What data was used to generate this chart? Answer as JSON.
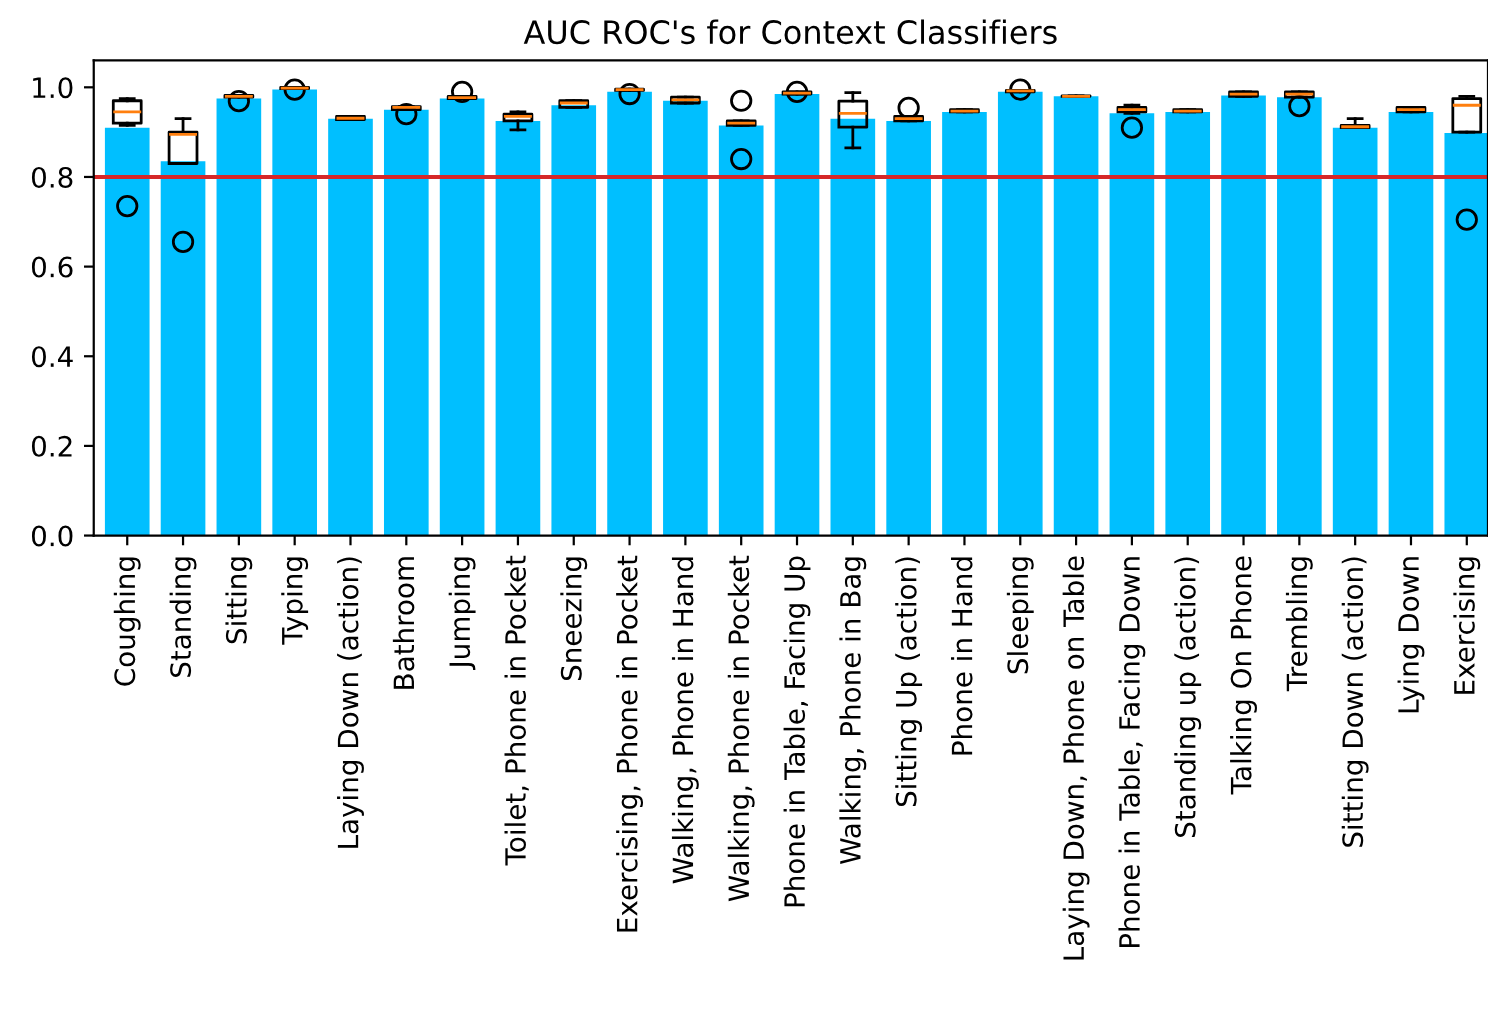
{
  "chart_data": {
    "type": "bar",
    "title": "AUC ROC's for Context Classifiers",
    "categories": [
      "Coughing",
      "Standing",
      "Sitting",
      "Typing",
      "Laying Down (action)",
      "Bathroom",
      "Jumping",
      "Toilet, Phone in Pocket",
      "Sneezing",
      "Exercising, Phone in Pocket",
      "Walking, Phone in Hand",
      "Walking, Phone in Pocket",
      "Phone in Table, Facing Up",
      "Walking, Phone in Bag",
      "Sitting Up (action)",
      "Phone in Hand",
      "Sleeping",
      "Laying Down, Phone on Table",
      "Phone in Table, Facing Down",
      "Standing up (action)",
      "Talking On Phone",
      "Trembling",
      "Sitting Down (action)",
      "Lying Down",
      "Exercising"
    ],
    "series": [
      {
        "color": "#00bfff",
        "values": [
          0.91,
          0.835,
          0.975,
          0.995,
          0.93,
          0.95,
          0.975,
          0.925,
          0.96,
          0.99,
          0.97,
          0.915,
          0.985,
          0.93,
          0.925,
          0.945,
          0.99,
          0.98,
          0.942,
          0.945,
          0.982,
          0.978,
          0.91,
          0.945,
          0.898
        ]
      },
      {
        "type": "box",
        "color": "#000000",
        "boxes": [
          {
            "low": 0.915,
            "q1": 0.92,
            "median": 0.945,
            "q3": 0.97,
            "high": 0.975,
            "outliers": [
              0.735
            ]
          },
          {
            "low": 0.83,
            "q1": 0.83,
            "median": 0.895,
            "q3": 0.9,
            "high": 0.93,
            "outliers": [
              0.655
            ]
          },
          {
            "low": 0.978,
            "q1": 0.978,
            "median": 0.98,
            "q3": 0.982,
            "high": 0.982,
            "outliers": [
              0.969
            ]
          },
          {
            "low": 0.997,
            "q1": 0.997,
            "median": 0.998,
            "q3": 1.0,
            "high": 1.0,
            "outliers": [
              0.995
            ]
          },
          {
            "low": 0.928,
            "q1": 0.928,
            "median": 0.931,
            "q3": 0.935,
            "high": 0.935
          },
          {
            "low": 0.95,
            "q1": 0.95,
            "median": 0.955,
            "q3": 0.957,
            "high": 0.957,
            "outliers": [
              0.94
            ]
          },
          {
            "low": 0.975,
            "q1": 0.975,
            "median": 0.977,
            "q3": 0.98,
            "high": 0.98,
            "outliers": [
              0.99
            ]
          },
          {
            "low": 0.905,
            "q1": 0.925,
            "median": 0.935,
            "q3": 0.94,
            "high": 0.945
          },
          {
            "low": 0.955,
            "q1": 0.955,
            "median": 0.965,
            "q3": 0.97,
            "high": 0.97
          },
          {
            "low": 0.993,
            "q1": 0.993,
            "median": 0.995,
            "q3": 0.996,
            "high": 0.996,
            "outliers": [
              0.985
            ]
          },
          {
            "low": 0.965,
            "q1": 0.965,
            "median": 0.972,
            "q3": 0.978,
            "high": 0.978
          },
          {
            "low": 0.915,
            "q1": 0.915,
            "median": 0.92,
            "q3": 0.925,
            "high": 0.925,
            "outliers": [
              0.97,
              0.84
            ]
          },
          {
            "low": 0.985,
            "q1": 0.985,
            "median": 0.987,
            "q3": 0.99,
            "high": 0.99,
            "outliers": [
              0.99
            ]
          },
          {
            "low": 0.865,
            "q1": 0.911,
            "median": 0.942,
            "q3": 0.969,
            "high": 0.988
          },
          {
            "low": 0.925,
            "q1": 0.925,
            "median": 0.93,
            "q3": 0.935,
            "high": 0.935,
            "outliers": [
              0.954
            ]
          },
          {
            "low": 0.945,
            "q1": 0.945,
            "median": 0.947,
            "q3": 0.95,
            "high": 0.95
          },
          {
            "low": 0.99,
            "q1": 0.99,
            "median": 0.992,
            "q3": 0.993,
            "high": 0.993,
            "outliers": [
              0.995
            ]
          },
          {
            "low": 0.98,
            "q1": 0.98,
            "median": 0.98,
            "q3": 0.981,
            "high": 0.981
          },
          {
            "low": 0.942,
            "q1": 0.945,
            "median": 0.95,
            "q3": 0.955,
            "high": 0.96,
            "outliers": [
              0.91
            ]
          },
          {
            "low": 0.945,
            "q1": 0.945,
            "median": 0.947,
            "q3": 0.95,
            "high": 0.95
          },
          {
            "low": 0.98,
            "q1": 0.98,
            "median": 0.985,
            "q3": 0.99,
            "high": 0.99
          },
          {
            "low": 0.978,
            "q1": 0.978,
            "median": 0.985,
            "q3": 0.99,
            "high": 0.99,
            "outliers": [
              0.958
            ]
          },
          {
            "low": 0.91,
            "q1": 0.91,
            "median": 0.912,
            "q3": 0.915,
            "high": 0.93
          },
          {
            "low": 0.945,
            "q1": 0.945,
            "median": 0.95,
            "q3": 0.955,
            "high": 0.955
          },
          {
            "low": 0.9,
            "q1": 0.9,
            "median": 0.96,
            "q3": 0.975,
            "high": 0.98,
            "outliers": [
              0.705
            ]
          }
        ]
      }
    ],
    "ylim": [
      0,
      1.06
    ],
    "yticks": [
      {
        "value": 0,
        "label": "0.0"
      },
      {
        "value": 0.2,
        "label": "0.2"
      },
      {
        "value": 0.4,
        "label": "0.4"
      },
      {
        "value": 0.6,
        "label": "0.6"
      },
      {
        "value": 0.8,
        "label": "0.8"
      },
      {
        "value": 1.0,
        "label": "1.0"
      }
    ],
    "ref_lines": [
      {
        "axis": "y",
        "value": 0.8,
        "color": "#d62728"
      }
    ],
    "grid": false
  }
}
